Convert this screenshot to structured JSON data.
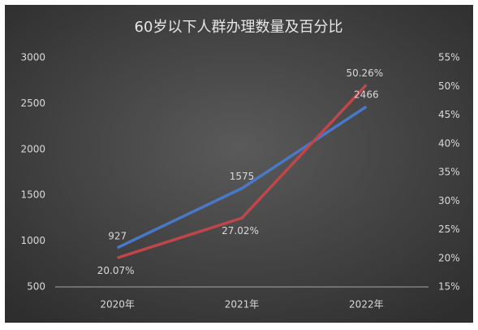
{
  "chart_data": {
    "type": "line",
    "title": "60岁以下人群办理数量及百分比",
    "categories": [
      "2020年",
      "2021年",
      "2022年"
    ],
    "series": [
      {
        "color": "#4a78c8",
        "values": [
          927,
          1575,
          2466
        ]
      },
      {
        "color": "#c0464a",
        "axis": "y2",
        "values": [
          20.07,
          27.02,
          50.26
        ],
        "value_labels": [
          "20.07%",
          "27.02%",
          "50.26%"
        ]
      }
    ],
    "ylim": [
      500,
      3000
    ],
    "yticks": [
      500,
      1000,
      1500,
      2000,
      2500,
      3000
    ],
    "y2lim": [
      15,
      55
    ],
    "y2ticks": [
      {
        "value": 15,
        "label": "15%"
      },
      {
        "value": 20,
        "label": "20%"
      },
      {
        "value": 25,
        "label": "25%"
      },
      {
        "value": 30,
        "label": "30%"
      },
      {
        "value": 35,
        "label": "35%"
      },
      {
        "value": 40,
        "label": "40%"
      },
      {
        "value": 45,
        "label": "45%"
      },
      {
        "value": 50,
        "label": "50%"
      },
      {
        "value": 55,
        "label": "55%"
      }
    ]
  }
}
